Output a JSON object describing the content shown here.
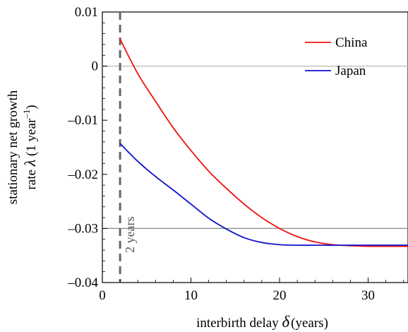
{
  "chart_data": {
    "type": "line",
    "xlabel_main": "interbirth delay",
    "xlabel_symbol": "δ",
    "xlabel_unit": "(years)",
    "ylabel_line1": "stationary net growth",
    "ylabel_line2_pre": "rate",
    "ylabel_line2_symbol": "λ",
    "ylabel_line2_unit_a": "(1 year",
    "ylabel_line2_sup": "–1",
    "ylabel_line2_unit_b": ")",
    "xlim": [
      0,
      34.5
    ],
    "ylim": [
      -0.04,
      0.01
    ],
    "x_ticks": [
      0,
      10,
      20,
      30
    ],
    "x_tick_labels": [
      "0",
      "10",
      "20",
      "30"
    ],
    "y_ticks": [
      -0.04,
      -0.03,
      -0.02,
      -0.01,
      0,
      0.01
    ],
    "y_tick_labels": [
      "–0.04",
      "–0.03",
      "–0.02",
      "–0.01",
      "0",
      "0.01"
    ],
    "gridlines_y": [
      -0.03,
      0
    ],
    "vertical_marker": {
      "x": 2,
      "label": "2 years",
      "color": "#666666"
    },
    "legend_position": "top-right",
    "series": [
      {
        "name": "China",
        "color": "#ee1111",
        "x": [
          2,
          4,
          6,
          8,
          10,
          12,
          14,
          16,
          18,
          20,
          22,
          24,
          26,
          28,
          30,
          32,
          34.5
        ],
        "y": [
          0.005,
          -0.0014,
          -0.0065,
          -0.0114,
          -0.0156,
          -0.0194,
          -0.0226,
          -0.0255,
          -0.028,
          -0.03,
          -0.0315,
          -0.0325,
          -0.033,
          -0.0332,
          -0.0333,
          -0.0333,
          -0.0333
        ]
      },
      {
        "name": "Japan",
        "color": "#1111cc",
        "x": [
          2,
          4,
          6,
          8,
          10,
          12,
          14,
          16,
          18,
          20,
          22,
          24,
          26,
          28,
          30,
          32,
          34.5
        ],
        "y": [
          -0.0143,
          -0.0176,
          -0.0204,
          -0.0229,
          -0.0255,
          -0.0281,
          -0.0301,
          -0.0317,
          -0.0326,
          -0.033,
          -0.0331,
          -0.0331,
          -0.0331,
          -0.0331,
          -0.0331,
          -0.0331,
          -0.0331
        ]
      }
    ]
  }
}
